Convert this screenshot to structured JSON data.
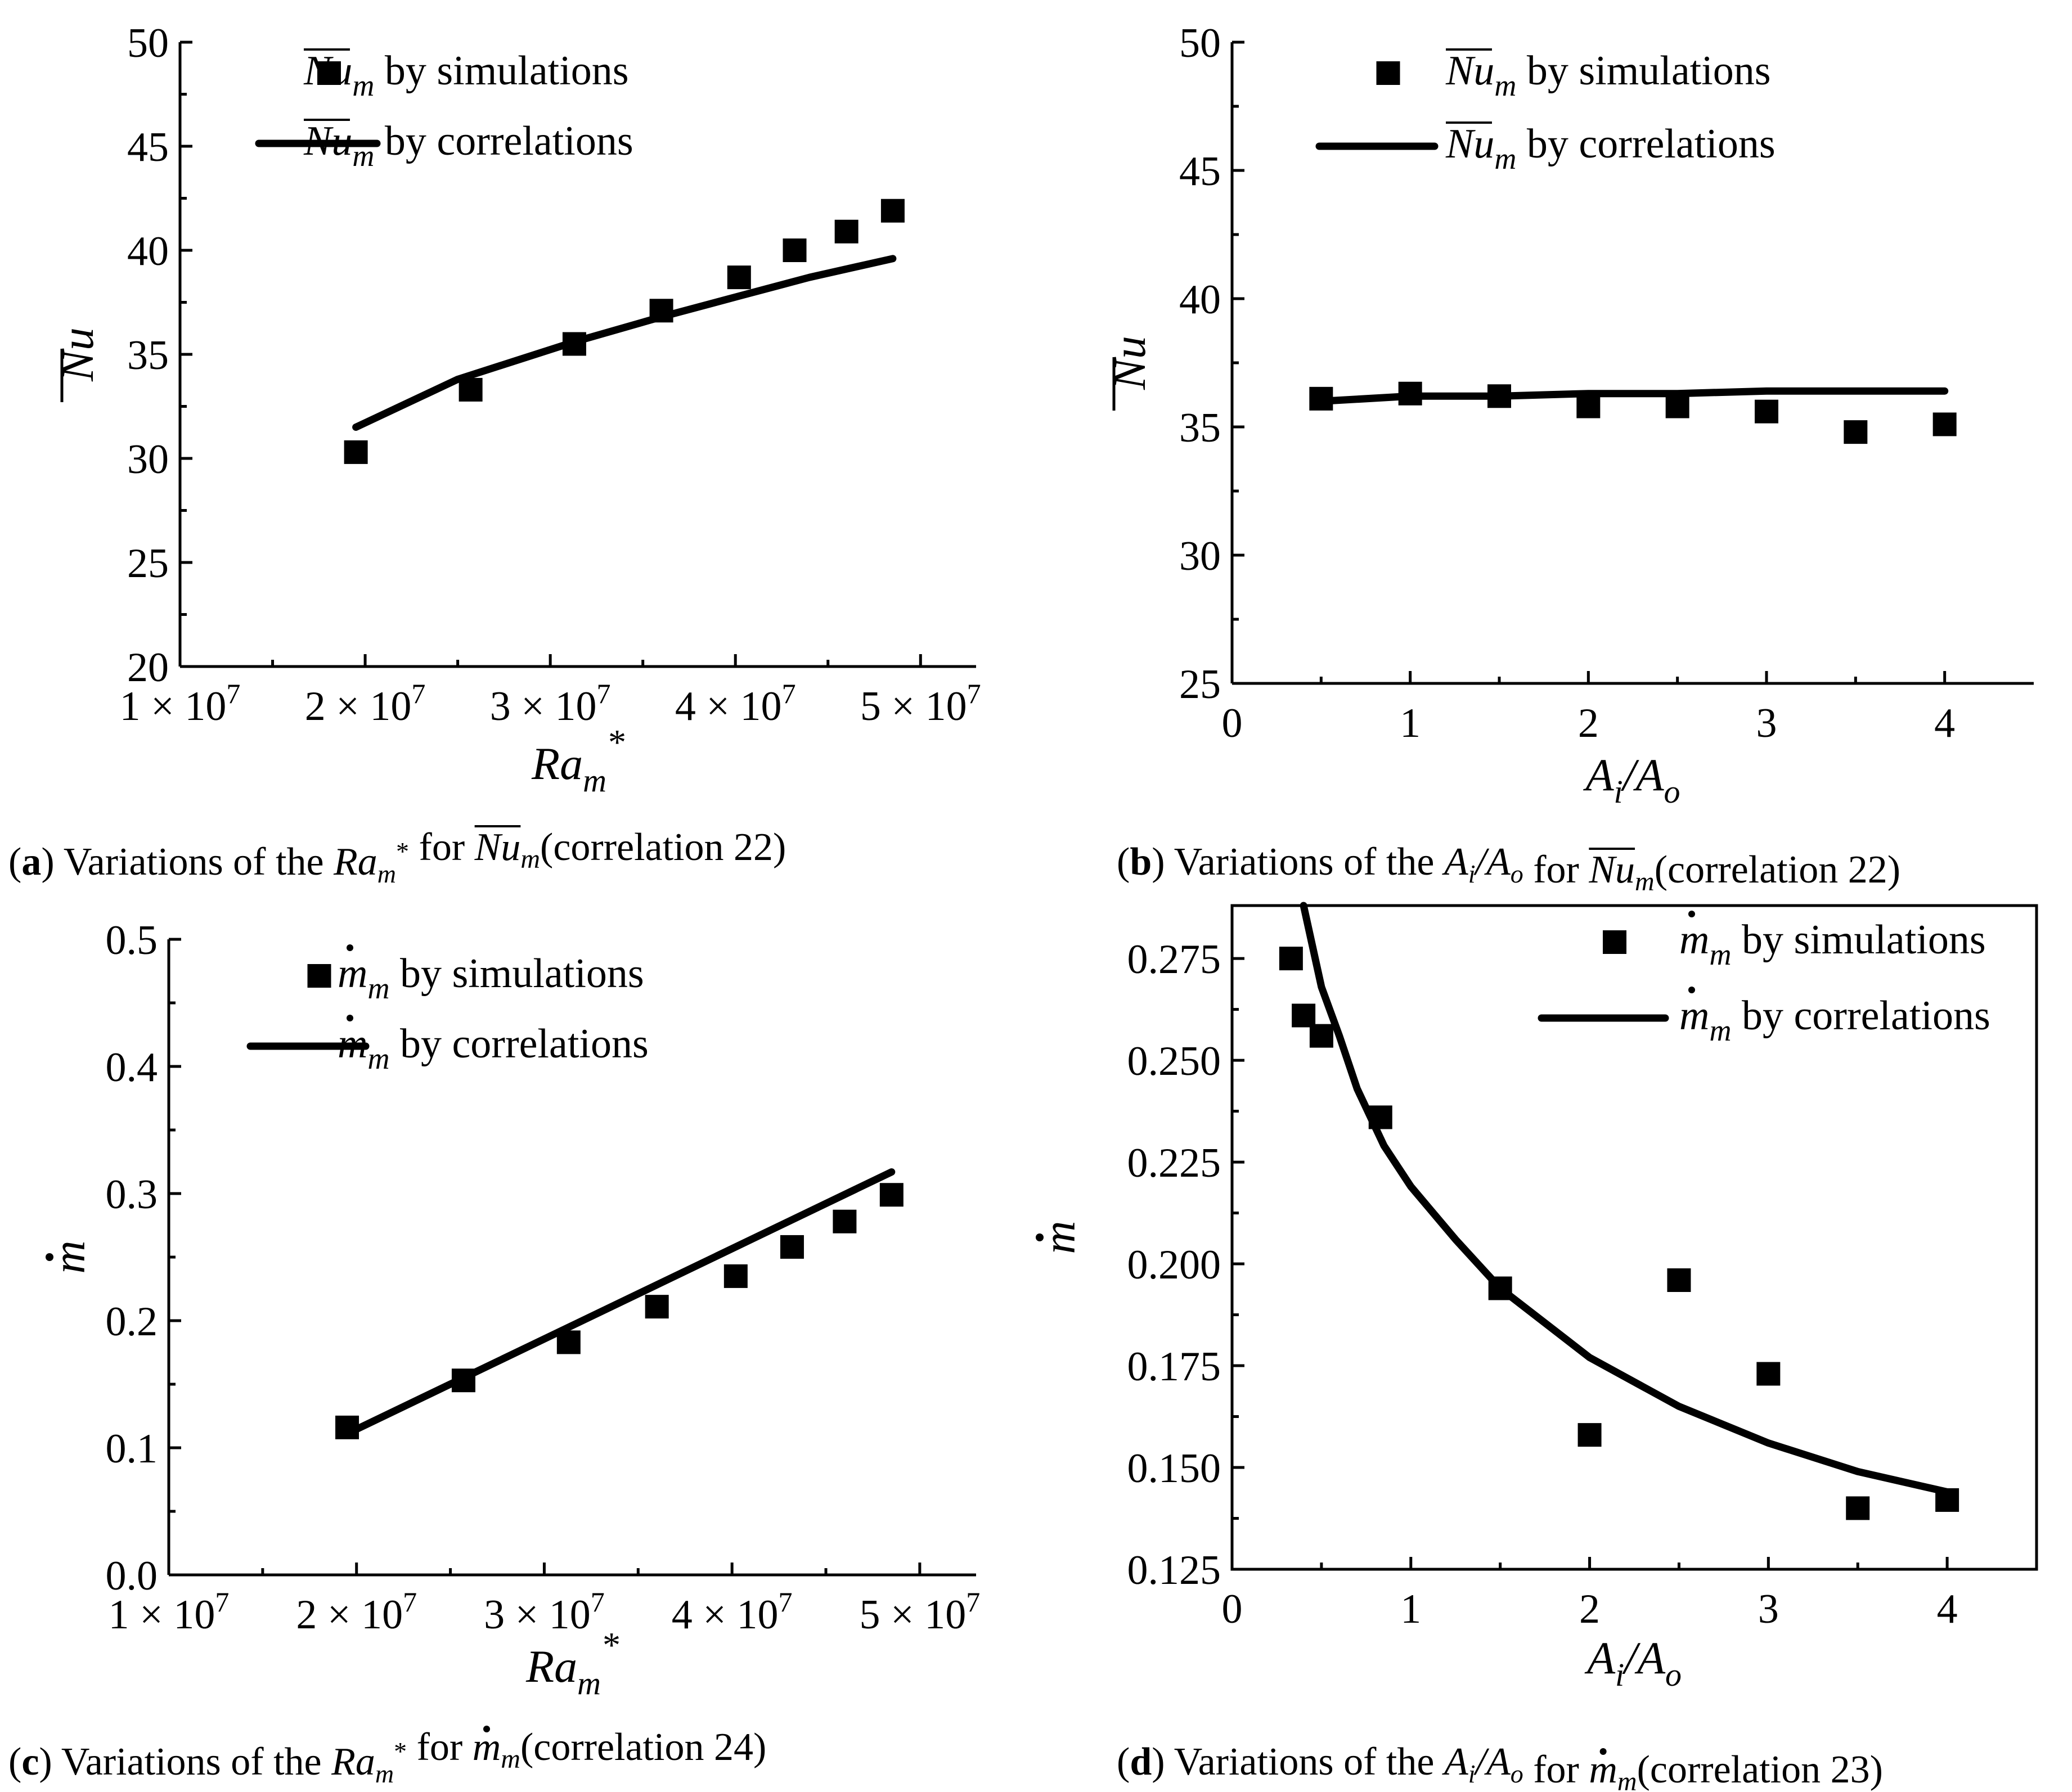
{
  "panels": [
    {
      "id": "a",
      "caption": {
        "letter": "a",
        "prefix": "Variations of the ",
        "var": "Ra",
        "var_sub": "m",
        "var_sup": "*",
        "mid": " for ",
        "target": "Nu",
        "target_sub": "m",
        "target_overbar": true,
        "target_dot": false,
        "suffix": "(correlation 22)"
      },
      "legend": [
        {
          "symbol": "square",
          "var": "Nu",
          "sub": "m",
          "overbar": true,
          "dot": false,
          "text": " by simulations"
        },
        {
          "symbol": "line",
          "var": "Nu",
          "sub": "m",
          "overbar": true,
          "dot": false,
          "text": " by correlations"
        }
      ]
    },
    {
      "id": "b",
      "caption": {
        "letter": "b",
        "prefix": "Variations of the ",
        "var": "A",
        "var_sub": "i",
        "var_sup": "",
        "var2": "/A",
        "var2_sub": "o",
        "mid": " for ",
        "target": "Nu",
        "target_sub": "m",
        "target_overbar": true,
        "target_dot": false,
        "suffix": "(correlation 22)"
      },
      "legend": [
        {
          "symbol": "square",
          "var": "Nu",
          "sub": "m",
          "overbar": true,
          "dot": false,
          "text": " by simulations"
        },
        {
          "symbol": "line",
          "var": "Nu",
          "sub": "m",
          "overbar": true,
          "dot": false,
          "text": " by correlations"
        }
      ]
    },
    {
      "id": "c",
      "caption": {
        "letter": "c",
        "prefix": "Variations of the ",
        "var": "Ra",
        "var_sub": "m",
        "var_sup": "*",
        "mid": " for ",
        "target": "m",
        "target_sub": "m",
        "target_overbar": false,
        "target_dot": true,
        "suffix": "(correlation 24)"
      },
      "legend": [
        {
          "symbol": "square",
          "var": "m",
          "sub": "m",
          "overbar": false,
          "dot": true,
          "text": " by simulations"
        },
        {
          "symbol": "line",
          "var": "m",
          "sub": "m",
          "overbar": false,
          "dot": true,
          "text": " by correlations"
        }
      ]
    },
    {
      "id": "d",
      "caption": {
        "letter": "d",
        "prefix": "Variations of the ",
        "var": "A",
        "var_sub": "i",
        "var_sup": "",
        "var2": "/A",
        "var2_sub": "o",
        "mid": " for ",
        "target": "m",
        "target_sub": "m",
        "target_overbar": false,
        "target_dot": true,
        "suffix": "(correlation 23)"
      },
      "legend": [
        {
          "symbol": "square",
          "var": "m",
          "sub": "m",
          "overbar": false,
          "dot": true,
          "text": " by simulations"
        },
        {
          "symbol": "line",
          "var": "m",
          "sub": "m",
          "overbar": false,
          "dot": true,
          "text": " by correlations"
        }
      ]
    }
  ],
  "chart_data": [
    {
      "type": "scatter",
      "panel": "a",
      "xlabel": "Ra_m*",
      "ylabel": "Nu (overbar)",
      "xlim": [
        10000000,
        53000000
      ],
      "ylim": [
        20,
        50
      ],
      "xticks": [
        10000000,
        20000000,
        30000000,
        40000000,
        50000000
      ],
      "xtick_labels": [
        {
          "mant": "1",
          "exp": "7"
        },
        {
          "mant": "2",
          "exp": "7"
        },
        {
          "mant": "3",
          "exp": "7"
        },
        {
          "mant": "4",
          "exp": "7"
        },
        {
          "mant": "5",
          "exp": "7"
        }
      ],
      "yticks": [
        20,
        25,
        30,
        35,
        40,
        45,
        50
      ],
      "ytick_labels": [
        "20",
        "25",
        "30",
        "35",
        "40",
        "45",
        "50"
      ],
      "series": [
        {
          "name": "Nu_m by simulations",
          "kind": "markers",
          "x": [
            19500000,
            25700000,
            31300000,
            36000000,
            40200000,
            43200000,
            46000000,
            48500000
          ],
          "y": [
            30.3,
            33.3,
            35.5,
            37.1,
            38.7,
            40.0,
            40.9,
            41.9
          ]
        },
        {
          "name": "Nu_m by correlations",
          "kind": "line",
          "x": [
            19500000,
            25000000,
            31300000,
            36000000,
            40200000,
            44000000,
            48500000
          ],
          "y": [
            31.5,
            33.8,
            35.6,
            36.8,
            37.8,
            38.7,
            39.6
          ]
        }
      ]
    },
    {
      "type": "scatter",
      "panel": "b",
      "xlabel": "A_i/A_o",
      "ylabel": "Nu (overbar)",
      "xlim": [
        0,
        4.5
      ],
      "ylim": [
        25,
        50
      ],
      "xticks": [
        0,
        1,
        2,
        3,
        4
      ],
      "xtick_labels": [
        "0",
        "1",
        "2",
        "3",
        "4"
      ],
      "yticks": [
        25,
        30,
        35,
        40,
        45,
        50
      ],
      "ytick_labels": [
        "25",
        "30",
        "35",
        "40",
        "45",
        "50"
      ],
      "series": [
        {
          "name": "Nu_m by simulations",
          "kind": "markers",
          "x": [
            0.5,
            1.0,
            1.5,
            2.0,
            2.5,
            3.0,
            3.5,
            4.0
          ],
          "y": [
            36.1,
            36.3,
            36.2,
            35.8,
            35.8,
            35.6,
            34.8,
            35.1
          ]
        },
        {
          "name": "Nu_m by correlations",
          "kind": "line",
          "x": [
            0.5,
            1.0,
            1.5,
            2.0,
            2.5,
            3.0,
            3.5,
            4.0
          ],
          "y": [
            36.0,
            36.2,
            36.2,
            36.3,
            36.3,
            36.4,
            36.4,
            36.4
          ]
        }
      ]
    },
    {
      "type": "scatter",
      "panel": "c",
      "xlabel": "Ra_m*",
      "ylabel": "m (dot)",
      "xlim": [
        10000000,
        53000000
      ],
      "ylim": [
        0.0,
        0.5
      ],
      "xticks": [
        10000000,
        20000000,
        30000000,
        40000000,
        50000000
      ],
      "xtick_labels": [
        {
          "mant": "1",
          "exp": "7"
        },
        {
          "mant": "2",
          "exp": "7"
        },
        {
          "mant": "3",
          "exp": "7"
        },
        {
          "mant": "4",
          "exp": "7"
        },
        {
          "mant": "5",
          "exp": "7"
        }
      ],
      "yticks": [
        0.0,
        0.1,
        0.2,
        0.3,
        0.4,
        0.5
      ],
      "ytick_labels": [
        "0.0",
        "0.1",
        "0.2",
        "0.3",
        "0.4",
        "0.5"
      ],
      "series": [
        {
          "name": "m_m by simulations",
          "kind": "markers",
          "x": [
            19500000,
            25700000,
            31300000,
            36000000,
            40200000,
            43200000,
            46000000,
            48500000
          ],
          "y": [
            0.116,
            0.153,
            0.183,
            0.211,
            0.235,
            0.258,
            0.278,
            0.299
          ]
        },
        {
          "name": "m_m by correlations",
          "kind": "line",
          "x": [
            19500000,
            48500000
          ],
          "y": [
            0.111,
            0.317
          ]
        }
      ]
    },
    {
      "type": "scatter",
      "panel": "d",
      "xlabel": "A_i/A_o",
      "ylabel": "m (dot)",
      "xlim": [
        0,
        4.5
      ],
      "ylim": [
        0.125,
        0.288
      ],
      "xticks": [
        0,
        1,
        2,
        3,
        4
      ],
      "xtick_labels": [
        "0",
        "1",
        "2",
        "3",
        "4"
      ],
      "yticks": [
        0.125,
        0.15,
        0.175,
        0.2,
        0.225,
        0.25,
        0.275
      ],
      "ytick_labels": [
        "0.125",
        "0.150",
        "0.175",
        "0.200",
        "0.225",
        "0.250",
        "0.275"
      ],
      "series": [
        {
          "name": "m_m by simulations",
          "kind": "markers",
          "x": [
            0.33,
            0.4,
            0.5,
            0.83,
            1.5,
            2.0,
            2.5,
            3.0,
            3.5,
            4.0
          ],
          "y": [
            0.275,
            0.261,
            0.256,
            0.236,
            0.194,
            0.158,
            0.196,
            0.173,
            0.14,
            0.142
          ]
        },
        {
          "name": "m_m by correlations",
          "kind": "line",
          "x": [
            0.4,
            0.5,
            0.6,
            0.7,
            0.85,
            1.0,
            1.25,
            1.5,
            2.0,
            2.5,
            3.0,
            3.5,
            4.0
          ],
          "y": [
            0.288,
            0.268,
            0.256,
            0.243,
            0.229,
            0.219,
            0.206,
            0.194,
            0.177,
            0.165,
            0.156,
            0.149,
            0.144
          ]
        }
      ]
    }
  ]
}
